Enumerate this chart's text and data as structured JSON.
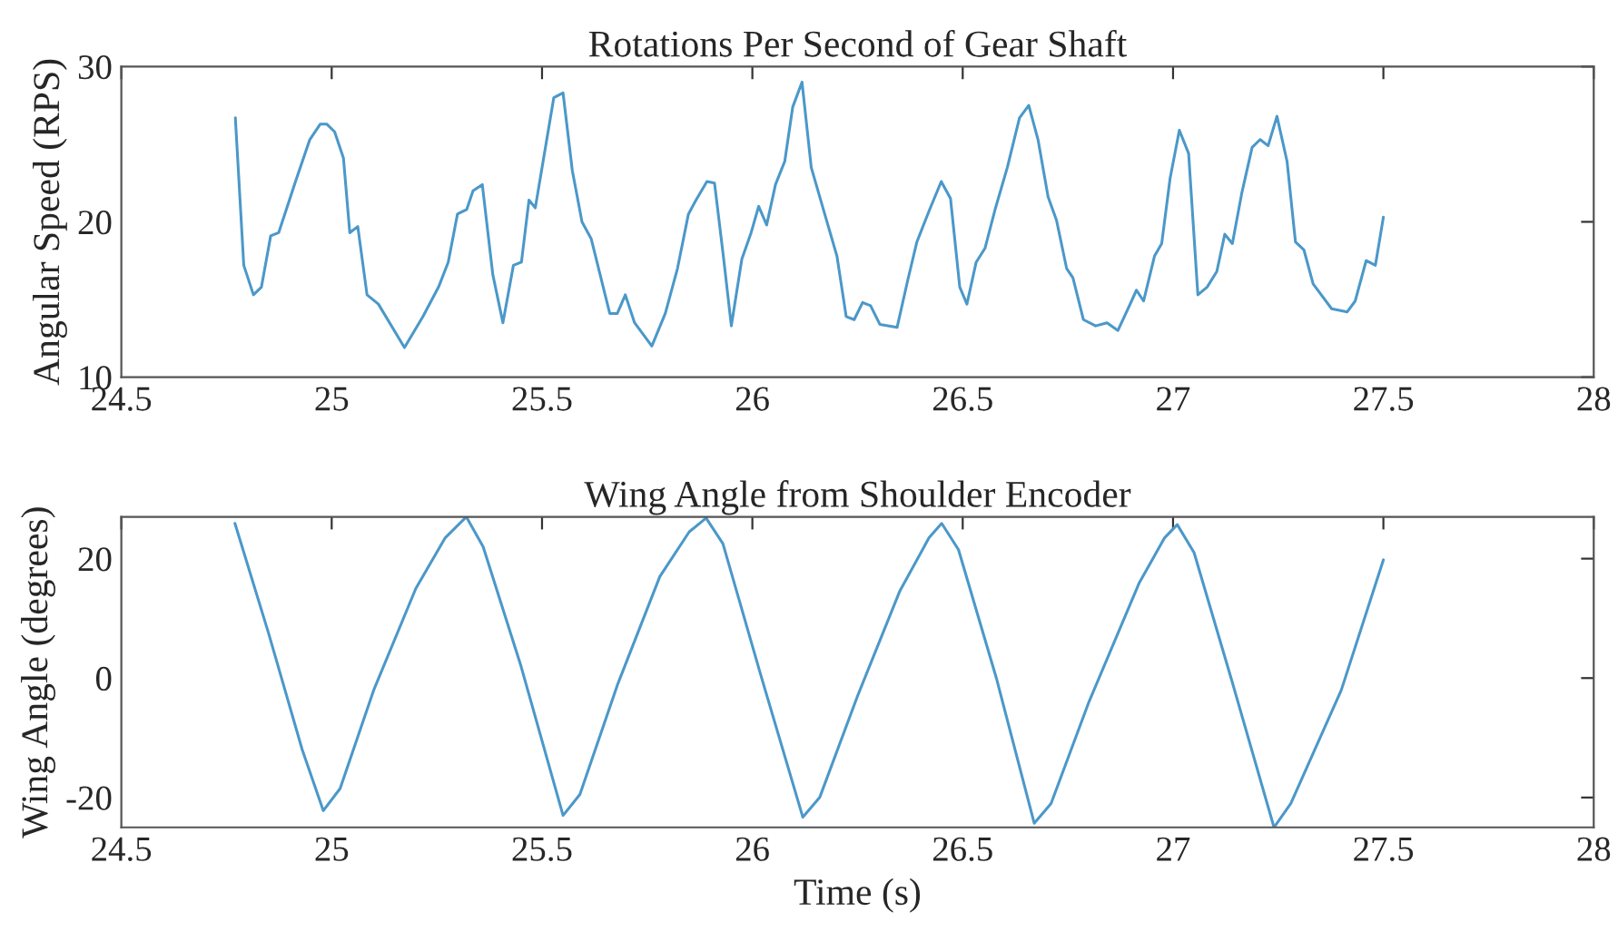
{
  "chart_data": [
    {
      "type": "line",
      "title": "Rotations Per Second of Gear Shaft",
      "ylabel": "Angular Speed (RPS)",
      "xlim": [
        24.5,
        28
      ],
      "xticks": [
        24.5,
        25,
        25.5,
        26,
        26.5,
        27,
        27.5,
        28
      ],
      "ylim": [
        10,
        30
      ],
      "yticks": [
        10,
        20,
        30
      ],
      "grid": false,
      "legend": false,
      "series": [
        {
          "color": "#4b98c9",
          "x": [
            24.771,
            24.791,
            24.814,
            24.833,
            24.855,
            24.874,
            24.914,
            24.948,
            24.973,
            24.988,
            25.007,
            25.028,
            25.043,
            25.062,
            25.084,
            25.111,
            25.173,
            25.217,
            25.254,
            25.277,
            25.299,
            25.321,
            25.336,
            25.358,
            25.383,
            25.407,
            25.432,
            25.451,
            25.469,
            25.484,
            25.528,
            25.55,
            25.572,
            25.595,
            25.617,
            25.661,
            25.679,
            25.698,
            25.72,
            25.761,
            25.793,
            25.822,
            25.848,
            25.866,
            25.892,
            25.91,
            25.931,
            25.95,
            25.975,
            25.997,
            26.015,
            26.034,
            26.055,
            26.077,
            26.096,
            26.118,
            26.14,
            26.172,
            26.201,
            26.223,
            26.242,
            26.262,
            26.281,
            26.303,
            26.344,
            26.369,
            26.391,
            26.42,
            26.449,
            26.471,
            26.493,
            26.51,
            26.532,
            26.553,
            26.577,
            26.606,
            26.635,
            26.657,
            26.679,
            26.703,
            26.723,
            26.747,
            26.762,
            26.787,
            26.816,
            26.843,
            26.869,
            26.898,
            26.913,
            26.93,
            26.956,
            26.973,
            26.993,
            27.015,
            27.037,
            27.059,
            27.081,
            27.104,
            27.123,
            27.141,
            27.163,
            27.188,
            27.207,
            27.226,
            27.247,
            27.271,
            27.291,
            27.311,
            27.333,
            27.377,
            27.414,
            27.433,
            27.459,
            27.481,
            27.5
          ],
          "values": [
            26.7,
            17.2,
            15.3,
            15.8,
            19.1,
            19.3,
            22.6,
            25.3,
            26.3,
            26.3,
            25.8,
            24.1,
            19.3,
            19.7,
            15.3,
            14.7,
            11.9,
            13.9,
            15.8,
            17.4,
            20.5,
            20.8,
            22.0,
            22.4,
            16.6,
            13.5,
            17.2,
            17.4,
            21.4,
            20.9,
            28.0,
            28.3,
            23.3,
            20.0,
            18.9,
            14.1,
            14.1,
            15.3,
            13.5,
            12.0,
            14.1,
            17.0,
            20.5,
            21.4,
            22.6,
            22.5,
            17.8,
            13.3,
            17.6,
            19.3,
            21.0,
            19.8,
            22.4,
            23.9,
            27.4,
            29.0,
            23.5,
            20.5,
            17.8,
            13.9,
            13.7,
            14.8,
            14.6,
            13.4,
            13.2,
            16.2,
            18.7,
            20.7,
            22.6,
            21.5,
            15.8,
            14.7,
            17.4,
            18.3,
            20.8,
            23.5,
            26.7,
            27.5,
            25.3,
            21.6,
            20.1,
            17.0,
            16.4,
            13.7,
            13.3,
            13.5,
            13.0,
            14.7,
            15.6,
            14.9,
            17.8,
            18.6,
            22.8,
            25.9,
            24.4,
            15.3,
            15.8,
            16.8,
            19.2,
            18.6,
            21.8,
            24.8,
            25.3,
            24.9,
            26.8,
            23.9,
            18.7,
            18.2,
            16.0,
            14.4,
            14.2,
            14.9,
            17.5,
            17.2,
            20.3
          ]
        }
      ]
    },
    {
      "type": "line",
      "title": "Wing Angle from Shoulder Encoder",
      "xlabel": "Time (s)",
      "ylabel": "Wing Angle (degrees)",
      "xlim": [
        24.5,
        28
      ],
      "xticks": [
        24.5,
        25,
        25.5,
        26,
        26.5,
        27,
        27.5,
        28
      ],
      "ylim": [
        -25,
        27
      ],
      "yticks": [
        -20,
        0,
        20
      ],
      "grid": false,
      "legend": false,
      "series": [
        {
          "color": "#4b98c9",
          "x": [
            24.77,
            24.85,
            24.93,
            24.98,
            25.02,
            25.1,
            25.2,
            25.27,
            25.32,
            25.36,
            25.45,
            25.55,
            25.59,
            25.68,
            25.78,
            25.85,
            25.89,
            25.93,
            26.02,
            26.12,
            26.16,
            26.25,
            26.35,
            26.42,
            26.45,
            26.49,
            26.58,
            26.67,
            26.71,
            26.8,
            26.92,
            26.98,
            27.01,
            27.05,
            27.14,
            27.24,
            27.28,
            27.4,
            27.5
          ],
          "values": [
            25.9,
            7.5,
            -12.0,
            -22.2,
            -18.5,
            -2.0,
            15.0,
            23.5,
            27.0,
            22.0,
            2.0,
            -23.0,
            -19.5,
            -1.0,
            17.0,
            24.5,
            26.8,
            22.5,
            0.5,
            -23.3,
            -20.0,
            -3.0,
            14.5,
            23.5,
            25.9,
            21.5,
            0.0,
            -24.3,
            -21.0,
            -4.0,
            16.0,
            23.5,
            25.7,
            21.0,
            -0.5,
            -25.0,
            -21.0,
            -2.0,
            19.8
          ]
        }
      ]
    }
  ]
}
